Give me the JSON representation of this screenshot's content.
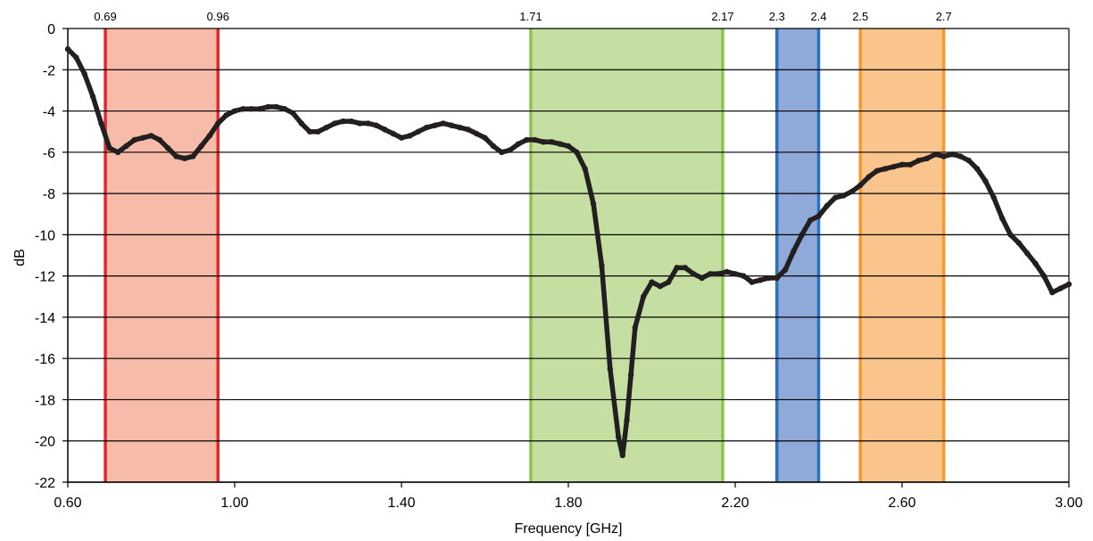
{
  "chart_data": {
    "type": "line",
    "title": "",
    "xlabel": "Frequency [GHz]",
    "ylabel": "dB",
    "xlim": [
      0.6,
      3.0
    ],
    "ylim": [
      -22,
      0
    ],
    "x_ticks": [
      "0.60",
      "1.00",
      "1.40",
      "1.80",
      "2.20",
      "2.60",
      "3.00"
    ],
    "x_tick_values": [
      0.6,
      1.0,
      1.4,
      1.8,
      2.2,
      2.6,
      3.0
    ],
    "y_ticks": [
      "0",
      "-2",
      "-4",
      "-6",
      "-8",
      "-10",
      "-12",
      "-14",
      "-16",
      "-18",
      "-20",
      "-22"
    ],
    "y_tick_values": [
      0,
      -2,
      -4,
      -6,
      -8,
      -10,
      -12,
      -14,
      -16,
      -18,
      -20,
      -22
    ],
    "grid": "horizontal",
    "bands": [
      {
        "start": 0.69,
        "end": 0.96,
        "start_label": "0.69",
        "end_label": "0.96",
        "fill": "#f7bca9",
        "edge": "#e0282e"
      },
      {
        "start": 1.71,
        "end": 2.17,
        "start_label": "1.71",
        "end_label": "2.17",
        "fill": "#c5dfa3",
        "edge": "#8cc44f"
      },
      {
        "start": 2.3,
        "end": 2.4,
        "start_label": "2.3",
        "end_label": "2.4",
        "fill": "#8faad9",
        "edge": "#2a73bc"
      },
      {
        "start": 2.5,
        "end": 2.7,
        "start_label": "2.5",
        "end_label": "2.7",
        "fill": "#fac58d",
        "edge": "#f59a2f"
      }
    ],
    "series": [
      {
        "color": "#231f20",
        "x": [
          0.6,
          0.62,
          0.64,
          0.66,
          0.68,
          0.7,
          0.72,
          0.74,
          0.76,
          0.78,
          0.8,
          0.82,
          0.84,
          0.86,
          0.88,
          0.9,
          0.92,
          0.94,
          0.96,
          0.98,
          1.0,
          1.02,
          1.04,
          1.06,
          1.08,
          1.1,
          1.12,
          1.14,
          1.16,
          1.18,
          1.2,
          1.22,
          1.24,
          1.26,
          1.28,
          1.3,
          1.32,
          1.34,
          1.36,
          1.38,
          1.4,
          1.42,
          1.44,
          1.46,
          1.48,
          1.5,
          1.52,
          1.54,
          1.56,
          1.58,
          1.6,
          1.62,
          1.64,
          1.66,
          1.68,
          1.7,
          1.72,
          1.74,
          1.76,
          1.78,
          1.8,
          1.82,
          1.84,
          1.86,
          1.88,
          1.9,
          1.92,
          1.93,
          1.94,
          1.95,
          1.96,
          1.98,
          2.0,
          2.02,
          2.04,
          2.06,
          2.08,
          2.1,
          2.12,
          2.14,
          2.16,
          2.18,
          2.2,
          2.22,
          2.24,
          2.26,
          2.28,
          2.3,
          2.32,
          2.34,
          2.36,
          2.38,
          2.4,
          2.42,
          2.44,
          2.46,
          2.48,
          2.5,
          2.52,
          2.54,
          2.56,
          2.58,
          2.6,
          2.62,
          2.64,
          2.66,
          2.68,
          2.7,
          2.72,
          2.74,
          2.76,
          2.78,
          2.8,
          2.82,
          2.84,
          2.86,
          2.88,
          2.9,
          2.92,
          2.94,
          2.96,
          2.98,
          3.0
        ],
        "y": [
          -1.0,
          -1.4,
          -2.2,
          -3.3,
          -4.6,
          -5.8,
          -6.0,
          -5.7,
          -5.4,
          -5.3,
          -5.2,
          -5.4,
          -5.8,
          -6.2,
          -6.3,
          -6.2,
          -5.7,
          -5.2,
          -4.6,
          -4.2,
          -4.0,
          -3.9,
          -3.9,
          -3.9,
          -3.8,
          -3.8,
          -3.9,
          -4.1,
          -4.6,
          -5.0,
          -5.0,
          -4.8,
          -4.6,
          -4.5,
          -4.5,
          -4.6,
          -4.6,
          -4.7,
          -4.9,
          -5.1,
          -5.3,
          -5.2,
          -5.0,
          -4.8,
          -4.7,
          -4.6,
          -4.7,
          -4.8,
          -4.9,
          -5.1,
          -5.3,
          -5.7,
          -6.0,
          -5.9,
          -5.6,
          -5.4,
          -5.4,
          -5.5,
          -5.5,
          -5.6,
          -5.7,
          -6.0,
          -6.8,
          -8.5,
          -11.5,
          -16.5,
          -19.8,
          -20.7,
          -19.0,
          -16.8,
          -14.5,
          -13.0,
          -12.3,
          -12.5,
          -12.3,
          -11.6,
          -11.6,
          -11.9,
          -12.1,
          -11.9,
          -11.9,
          -11.8,
          -11.9,
          -12.0,
          -12.3,
          -12.2,
          -12.1,
          -12.1,
          -11.7,
          -10.8,
          -10.0,
          -9.3,
          -9.1,
          -8.6,
          -8.2,
          -8.1,
          -7.9,
          -7.6,
          -7.2,
          -6.9,
          -6.8,
          -6.7,
          -6.6,
          -6.6,
          -6.4,
          -6.3,
          -6.1,
          -6.2,
          -6.1,
          -6.2,
          -6.4,
          -6.8,
          -7.4,
          -8.2,
          -9.2,
          -10.0,
          -10.4,
          -10.9,
          -11.4,
          -12.0,
          -12.8,
          -12.6,
          -12.4
        ]
      }
    ]
  }
}
